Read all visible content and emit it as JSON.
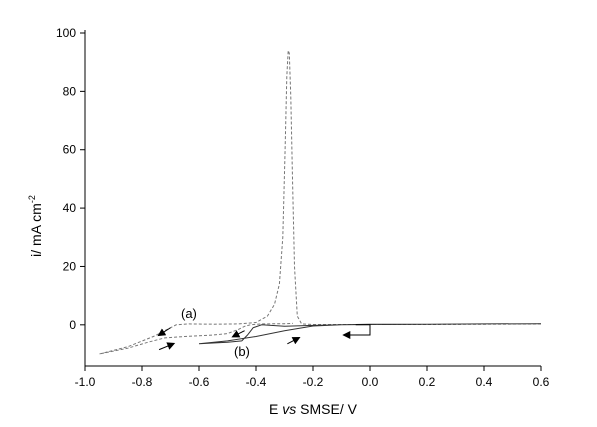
{
  "chart_data": {
    "type": "line",
    "title": "",
    "xlabel": {
      "prefix": "E ",
      "italic": "vs",
      "suffix": " SMSE/ V"
    },
    "ylabel": {
      "main": "i/ mA cm",
      "sup": "-2"
    },
    "xlim": [
      -1.0,
      0.6
    ],
    "ylim": [
      -15,
      100
    ],
    "xticks": [
      "-1.0",
      "-0.8",
      "-0.6",
      "-0.4",
      "-0.2",
      "0.0",
      "0.2",
      "0.4",
      "0.6"
    ],
    "yticks": [
      "100",
      "80",
      "60",
      "40",
      "20",
      "0"
    ],
    "grid": false,
    "legend": "none",
    "annotations": [
      "(a)",
      "(b)"
    ],
    "series": [
      {
        "style": "dashed",
        "color": "#777777",
        "points": [
          [
            0.6,
            0.3
          ],
          [
            0.4,
            0.2
          ],
          [
            0.2,
            0.1
          ],
          [
            0.0,
            0.1
          ],
          [
            -0.1,
            0.1
          ],
          [
            -0.2,
            0.1
          ],
          [
            -0.24,
            0.3
          ],
          [
            -0.255,
            3.0
          ],
          [
            -0.265,
            20.0
          ],
          [
            -0.272,
            50.0
          ],
          [
            -0.278,
            78.0
          ],
          [
            -0.283,
            93.0
          ],
          [
            -0.287,
            94.0
          ],
          [
            -0.292,
            85.0
          ],
          [
            -0.298,
            60.0
          ],
          [
            -0.306,
            30.0
          ],
          [
            -0.318,
            14.0
          ],
          [
            -0.335,
            7.0
          ],
          [
            -0.36,
            3.0
          ],
          [
            -0.4,
            0.8
          ],
          [
            -0.46,
            0.3
          ],
          [
            -0.55,
            0.2
          ],
          [
            -0.64,
            0.3
          ],
          [
            -0.68,
            0.0
          ],
          [
            -0.71,
            -1.5
          ],
          [
            -0.76,
            -4.0
          ],
          [
            -0.85,
            -7.5
          ],
          [
            -0.95,
            -10.0
          ],
          [
            -0.85,
            -8.0
          ],
          [
            -0.78,
            -6.0
          ],
          [
            -0.72,
            -4.5
          ],
          [
            -0.65,
            -4.0
          ],
          [
            -0.55,
            -3.5
          ],
          [
            -0.5,
            -3.0
          ],
          [
            -0.46,
            -1.5
          ],
          [
            -0.44,
            -0.5
          ],
          [
            -0.42,
            0.0
          ],
          [
            -0.38,
            0.3
          ],
          [
            -0.3,
            0.4
          ],
          [
            -0.27,
            0.5
          ]
        ]
      },
      {
        "style": "solid",
        "color": "#333333",
        "points": [
          [
            0.6,
            0.4
          ],
          [
            0.4,
            0.3
          ],
          [
            0.2,
            0.2
          ],
          [
            0.0,
            0.2
          ],
          [
            -0.1,
            0.0
          ],
          [
            -0.2,
            -0.4
          ],
          [
            -0.3,
            -2.0
          ],
          [
            -0.4,
            -4.0
          ],
          [
            -0.5,
            -5.5
          ],
          [
            -0.6,
            -6.5
          ],
          [
            -0.5,
            -6.0
          ],
          [
            -0.45,
            -5.5
          ],
          [
            -0.43,
            -3.5
          ],
          [
            -0.41,
            -1.0
          ],
          [
            -0.38,
            0.0
          ],
          [
            -0.3,
            -0.5
          ],
          [
            -0.2,
            -0.2
          ],
          [
            -0.1,
            0.0
          ],
          [
            0.0,
            0.1
          ],
          [
            0.2,
            0.2
          ],
          [
            0.4,
            0.3
          ],
          [
            0.6,
            0.4
          ]
        ]
      }
    ],
    "arrows": [
      [
        [
          -0.7,
          -1.0
        ],
        [
          -0.74,
          -3.5
        ]
      ],
      [
        [
          -0.74,
          -8.5
        ],
        [
          -0.69,
          -6.5
        ]
      ],
      [
        [
          -0.44,
          -2.0
        ],
        [
          -0.48,
          -4.0
        ]
      ],
      [
        [
          -0.29,
          -6.5
        ],
        [
          -0.25,
          -4.5
        ]
      ]
    ],
    "bracket_arrow": {
      "path": [
        [
          -0.05,
          0.0
        ],
        [
          0.0,
          0.0
        ],
        [
          0.0,
          -3.5
        ],
        [
          -0.09,
          -3.5
        ]
      ],
      "head_at": [
        -0.09,
        -3.5
      ]
    }
  }
}
